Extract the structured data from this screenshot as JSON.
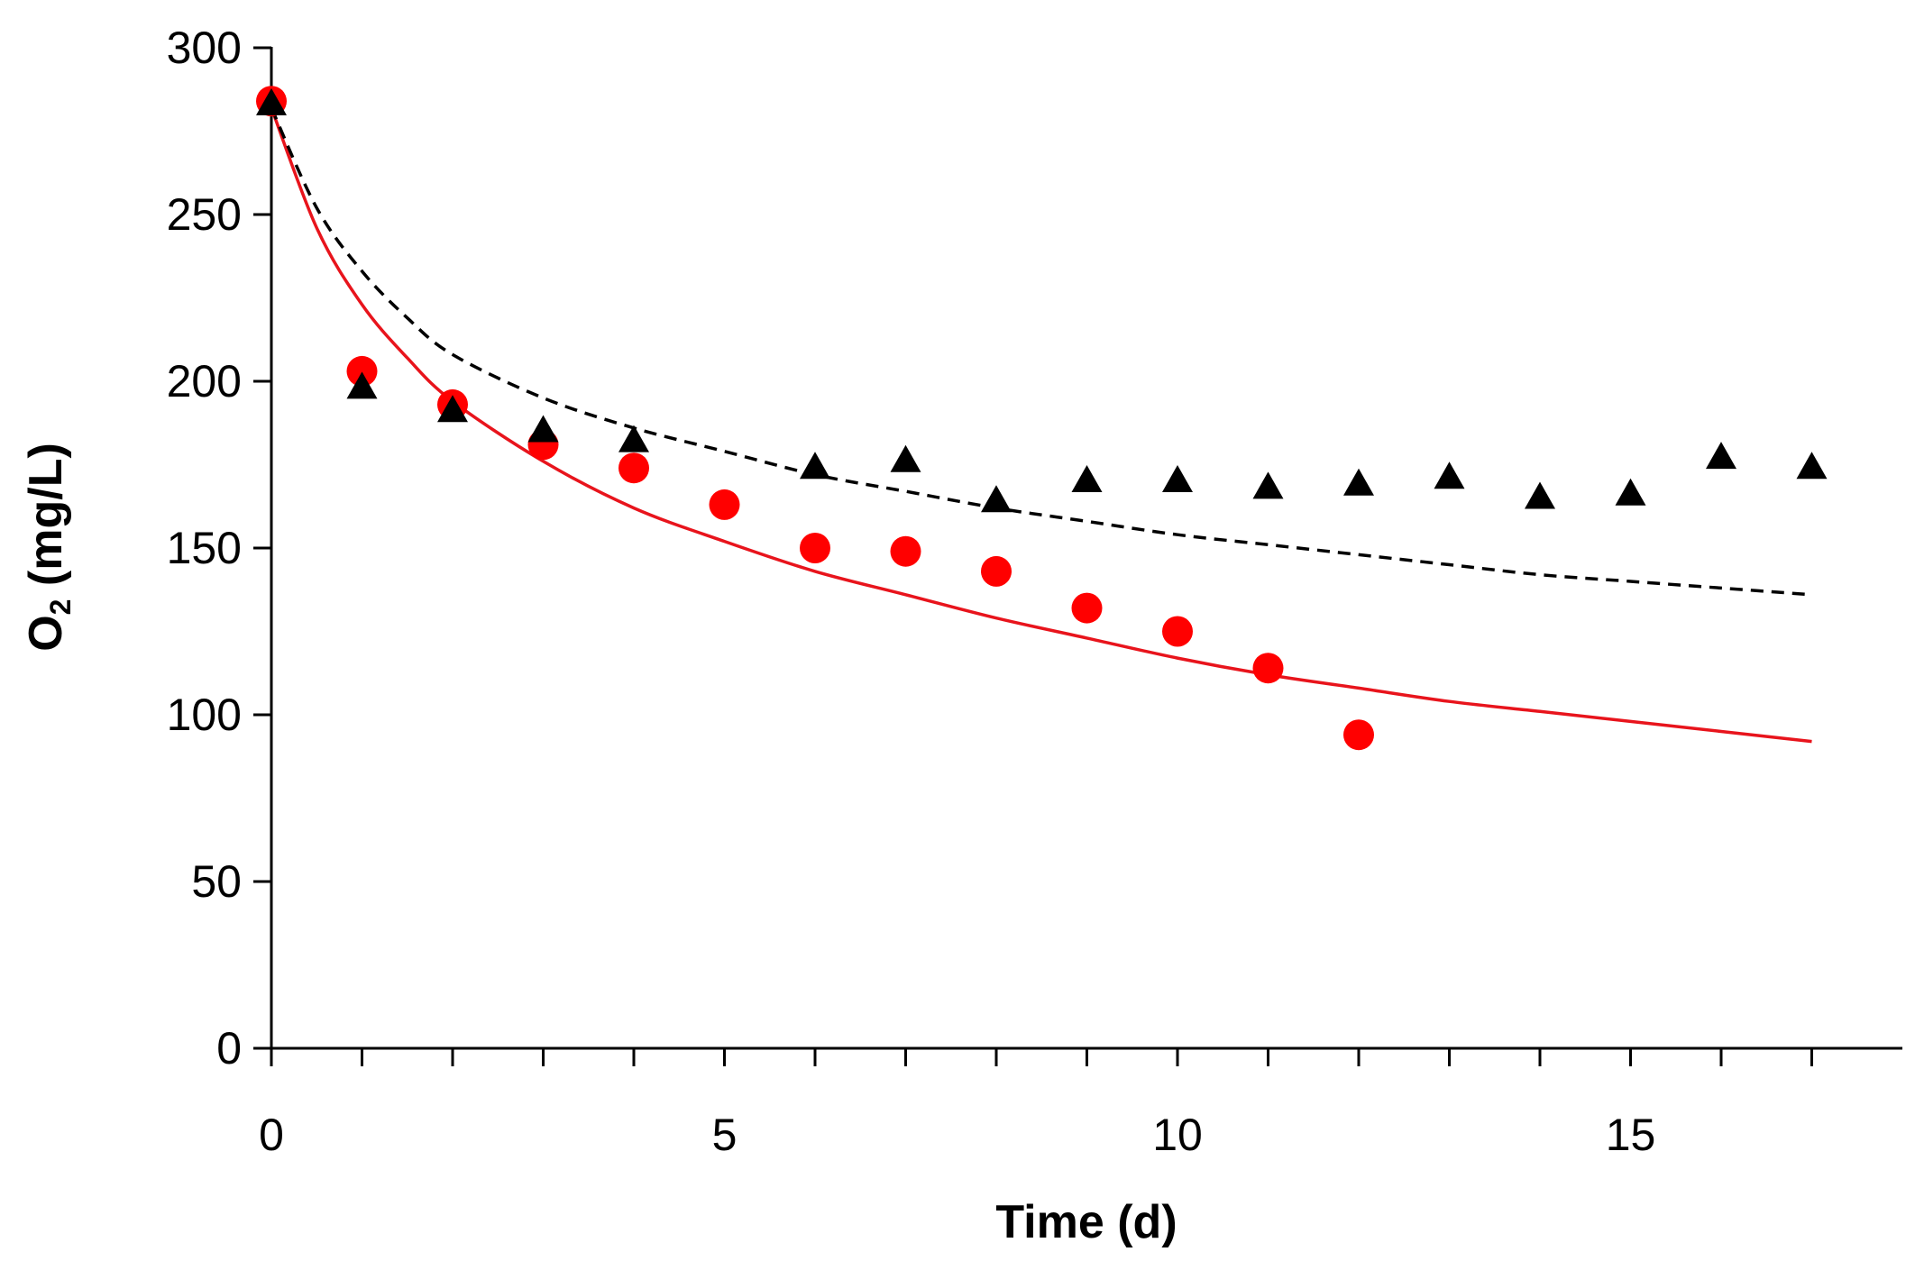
{
  "chart_data": {
    "type": "scatter",
    "title": "",
    "xlabel": "Time (d)",
    "ylabel_main": "O",
    "ylabel_sub": "2",
    "ylabel_rest": " (mg/L)",
    "xlim": [
      0,
      18
    ],
    "ylim": [
      0,
      300
    ],
    "x_ticks": [
      0,
      5,
      10,
      15
    ],
    "x_minor_ticks": [
      0,
      1,
      2,
      3,
      4,
      5,
      6,
      7,
      8,
      9,
      10,
      11,
      12,
      13,
      14,
      15,
      16,
      17
    ],
    "y_ticks": [
      0,
      50,
      100,
      150,
      200,
      250,
      300
    ],
    "grid": false,
    "series": [
      {
        "name": "circles",
        "marker": "circle",
        "color": "#ff0000",
        "x": [
          0,
          1,
          2,
          3,
          4,
          5,
          6,
          7,
          8,
          9,
          10,
          11,
          12
        ],
        "y": [
          284,
          203,
          193,
          181,
          174,
          163,
          150,
          149,
          143,
          132,
          125,
          114,
          94
        ]
      },
      {
        "name": "triangles",
        "marker": "triangle",
        "color": "#000000",
        "x": [
          0,
          1,
          2,
          3,
          4,
          6,
          7,
          8,
          9,
          10,
          11,
          12,
          13,
          14,
          15,
          16,
          17
        ],
        "y": [
          283,
          198,
          191,
          185,
          182,
          174,
          176,
          164,
          170,
          170,
          168,
          169,
          171,
          165,
          166,
          177,
          174
        ]
      }
    ],
    "fits": [
      {
        "name": "red-fit",
        "style": "solid",
        "color": "#e8141c",
        "x": [
          0,
          0.5,
          1,
          1.5,
          2,
          3,
          4,
          5,
          6,
          7,
          8,
          9,
          10,
          11,
          12,
          13,
          14,
          15,
          16,
          17
        ],
        "y": [
          282,
          246,
          223,
          207,
          194,
          176,
          162,
          152,
          143,
          136,
          129,
          123,
          117,
          112,
          108,
          104,
          101,
          98,
          95,
          92
        ]
      },
      {
        "name": "black-fit",
        "style": "dashed",
        "color": "#000000",
        "x": [
          0,
          0.5,
          1,
          1.5,
          2,
          3,
          4,
          5,
          6,
          7,
          8,
          9,
          10,
          11,
          12,
          13,
          14,
          15,
          16,
          17
        ],
        "y": [
          282,
          252,
          233,
          219,
          208,
          195,
          186,
          179,
          172,
          167,
          162,
          158,
          154,
          151,
          148,
          145,
          142,
          140,
          138,
          136
        ]
      }
    ]
  }
}
